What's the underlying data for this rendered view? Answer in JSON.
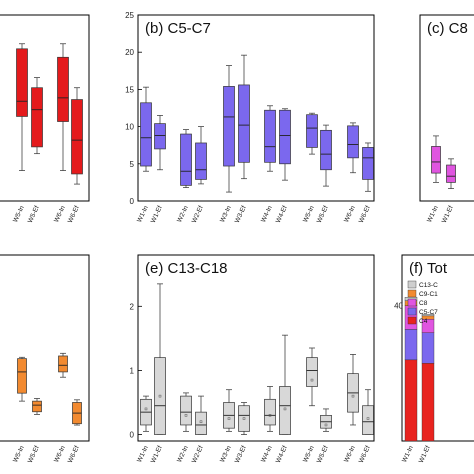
{
  "chart_data": [
    {
      "panel": "a",
      "type": "box",
      "title": "",
      "categories": [
        "W5-In",
        "W5-Ef",
        "W6-In",
        "W6-Ef"
      ],
      "color": "#e41a1c",
      "boxes": [
        {
          "min": 18,
          "q1": 50,
          "median": 59,
          "q3": 90,
          "max": 93
        },
        {
          "min": 28,
          "q1": 32,
          "median": 54,
          "q3": 67,
          "max": 73
        },
        {
          "min": 18,
          "q1": 47,
          "median": 61,
          "q3": 85,
          "max": 93
        },
        {
          "min": 10,
          "q1": 16,
          "median": 36,
          "q3": 60,
          "max": 67
        }
      ]
    },
    {
      "panel": "b",
      "type": "box",
      "title": "(b) C5-C7",
      "categories": [
        "W1-In",
        "W1-Ef",
        "W2-In",
        "W2-Ef",
        "W3-In",
        "W3-Ef",
        "W4-In",
        "W4-Ef",
        "W5-In",
        "W5-Ef",
        "W6-In",
        "W6-Ef"
      ],
      "yticks": [
        "0",
        "5",
        "10",
        "15",
        "20",
        "25"
      ],
      "ylim": [
        0,
        25
      ],
      "color": "#7b68ee",
      "boxes": [
        {
          "min": 4.0,
          "q1": 4.7,
          "median": 8.5,
          "q3": 13.2,
          "max": 15.3
        },
        {
          "min": 4.2,
          "q1": 7.0,
          "median": 8.8,
          "q3": 10.4,
          "max": 11.5
        },
        {
          "min": 1.8,
          "q1": 2.1,
          "median": 4.0,
          "q3": 9.0,
          "max": 9.6
        },
        {
          "min": 2.3,
          "q1": 2.9,
          "median": 4.2,
          "q3": 7.8,
          "max": 10.0
        },
        {
          "min": 1.2,
          "q1": 4.7,
          "median": 11.3,
          "q3": 15.4,
          "max": 18.2
        },
        {
          "min": 3.0,
          "q1": 5.2,
          "median": 10.2,
          "q3": 15.6,
          "max": 19.6
        },
        {
          "min": 4.0,
          "q1": 5.2,
          "median": 7.3,
          "q3": 12.2,
          "max": 12.8
        },
        {
          "min": 2.8,
          "q1": 5.0,
          "median": 8.8,
          "q3": 12.2,
          "max": 12.4
        },
        {
          "min": 6.3,
          "q1": 7.2,
          "median": 9.8,
          "q3": 11.6,
          "max": 11.8
        },
        {
          "min": 2.0,
          "q1": 4.2,
          "median": 6.3,
          "q3": 9.5,
          "max": 10.2
        },
        {
          "min": 3.8,
          "q1": 5.8,
          "median": 7.6,
          "q3": 10.1,
          "max": 10.5
        },
        {
          "min": 1.3,
          "q1": 2.9,
          "median": 5.8,
          "q3": 7.2,
          "max": 7.8
        }
      ]
    },
    {
      "panel": "c",
      "type": "box",
      "title": "(c) C8",
      "categories": [
        "W1-In",
        "W1-Ef"
      ],
      "color": "#e055e0",
      "boxes": [
        {
          "min": 3.0,
          "q1": 4.5,
          "median": 6.3,
          "q3": 8.8,
          "max": 10.5
        },
        {
          "min": 2.0,
          "q1": 3.0,
          "median": 4.0,
          "q3": 5.8,
          "max": 6.8
        }
      ]
    },
    {
      "panel": "d",
      "type": "box",
      "title": "",
      "categories": [
        "W5-In",
        "W5-Ef",
        "W6-In",
        "W6-Ef"
      ],
      "color": "#f28a30",
      "boxes": [
        {
          "min": 30,
          "q1": 36,
          "median": 52,
          "q3": 62,
          "max": 63
        },
        {
          "min": 20,
          "q1": 22,
          "median": 27,
          "q3": 30,
          "max": 32
        },
        {
          "min": 48,
          "q1": 52,
          "median": 57,
          "q3": 64,
          "max": 66
        },
        {
          "min": 12,
          "q1": 13,
          "median": 21,
          "q3": 29,
          "max": 31
        }
      ]
    },
    {
      "panel": "e",
      "type": "box",
      "title": "(e) C13-C18",
      "categories": [
        "W1-In",
        "W1-Ef",
        "W2-In",
        "W2-Ef",
        "W3-In",
        "W3-Ef",
        "W4-In",
        "W4-Ef",
        "W5-In",
        "W5-Ef",
        "W6-In",
        "W6-Ef"
      ],
      "yticks": [
        "0",
        "1",
        "2"
      ],
      "ylim": [
        -0.1,
        2.8
      ],
      "color": "#d8d8d8",
      "boxes": [
        {
          "min": 0.05,
          "q1": 0.15,
          "median": 0.35,
          "q3": 0.55,
          "max": 0.6,
          "mean": 0.4
        },
        {
          "min": 0.0,
          "q1": 0.0,
          "median": 0.45,
          "q3": 1.2,
          "max": 2.35,
          "mean": 0.6
        },
        {
          "min": 0.05,
          "q1": 0.15,
          "median": 0.35,
          "q3": 0.6,
          "max": 0.65,
          "mean": 0.3
        },
        {
          "min": 0.0,
          "q1": 0.0,
          "median": 0.15,
          "q3": 0.35,
          "max": 0.6,
          "mean": 0.2
        },
        {
          "min": 0.05,
          "q1": 0.1,
          "median": 0.3,
          "q3": 0.5,
          "max": 0.7,
          "mean": 0.25
        },
        {
          "min": 0.0,
          "q1": 0.05,
          "median": 0.3,
          "q3": 0.45,
          "max": 0.5,
          "mean": 0.25
        },
        {
          "min": 0.05,
          "q1": 0.15,
          "median": 0.3,
          "q3": 0.55,
          "max": 0.75,
          "mean": 0.3
        },
        {
          "min": 0.0,
          "q1": 0.0,
          "median": 0.45,
          "q3": 0.75,
          "max": 1.55,
          "mean": 0.4
        },
        {
          "min": 0.45,
          "q1": 0.75,
          "median": 1.0,
          "q3": 1.2,
          "max": 1.35,
          "mean": 0.85
        },
        {
          "min": 0.05,
          "q1": 0.1,
          "median": 0.2,
          "q3": 0.3,
          "max": 0.4,
          "mean": 0.15
        },
        {
          "min": 0.15,
          "q1": 0.35,
          "median": 0.65,
          "q3": 0.95,
          "max": 1.25,
          "mean": 0.6
        },
        {
          "min": 0.0,
          "q1": 0.0,
          "median": 0.2,
          "q3": 0.45,
          "max": 0.7,
          "mean": 0.25
        }
      ]
    },
    {
      "panel": "f",
      "type": "stacked-bar",
      "title": "(f) Tot",
      "categories": [
        "W1-In",
        "W1-Ef"
      ],
      "yticks": [
        "40"
      ],
      "ylim": [
        0,
        55
      ],
      "legend": [
        "C13-C",
        "C9-C1",
        "C8",
        "C5-C7",
        "C4"
      ],
      "series": [
        {
          "name": "C4",
          "color": "#e8231f",
          "values": [
            24,
            23
          ]
        },
        {
          "name": "C5-C7",
          "color": "#7b68ee",
          "values": [
            9,
            9
          ]
        },
        {
          "name": "C8",
          "color": "#e055e0",
          "values": [
            7,
            4
          ]
        },
        {
          "name": "C9-C1",
          "color": "#f28a30",
          "values": [
            1.5,
            1
          ]
        },
        {
          "name": "C13-C",
          "color": "#cfcfcf",
          "values": [
            1,
            0.5
          ]
        }
      ]
    }
  ],
  "legend_colors": {
    "C13-C": "#cfcfcf",
    "C9-C1": "#f28a30",
    "C8": "#e055e0",
    "C5-C7": "#7b68ee",
    "C4": "#e8231f"
  }
}
